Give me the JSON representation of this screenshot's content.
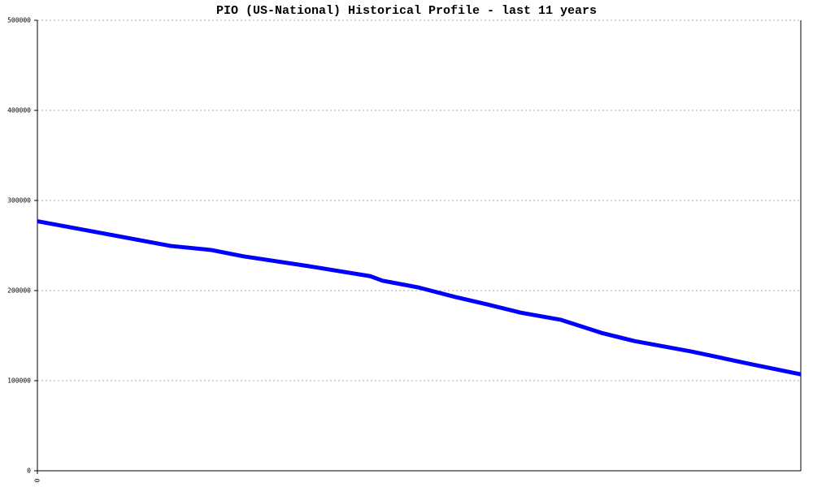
{
  "chart_data": {
    "type": "line",
    "title": "PIO (US-National) Historical Profile - last 11 years",
    "x": [
      0,
      17.5,
      22.8,
      27,
      35.6,
      43.6,
      45.2,
      49.9,
      54.7,
      59,
      63.3,
      68.6,
      73.9,
      78.2,
      85.6,
      93.1,
      100
    ],
    "series": [
      {
        "color": "#0000ff",
        "values": [
          277000,
          249500,
          245000,
          238000,
          227000,
          216000,
          211000,
          203500,
          193000,
          184500,
          175500,
          167500,
          153000,
          144000,
          132500,
          119000,
          107000
        ]
      }
    ],
    "xlim": [
      0,
      100
    ],
    "xticks": [
      0
    ],
    "ylim": [
      0,
      500000
    ],
    "yticks": [
      0,
      100000,
      200000,
      300000,
      400000,
      500000
    ],
    "grid": true
  }
}
